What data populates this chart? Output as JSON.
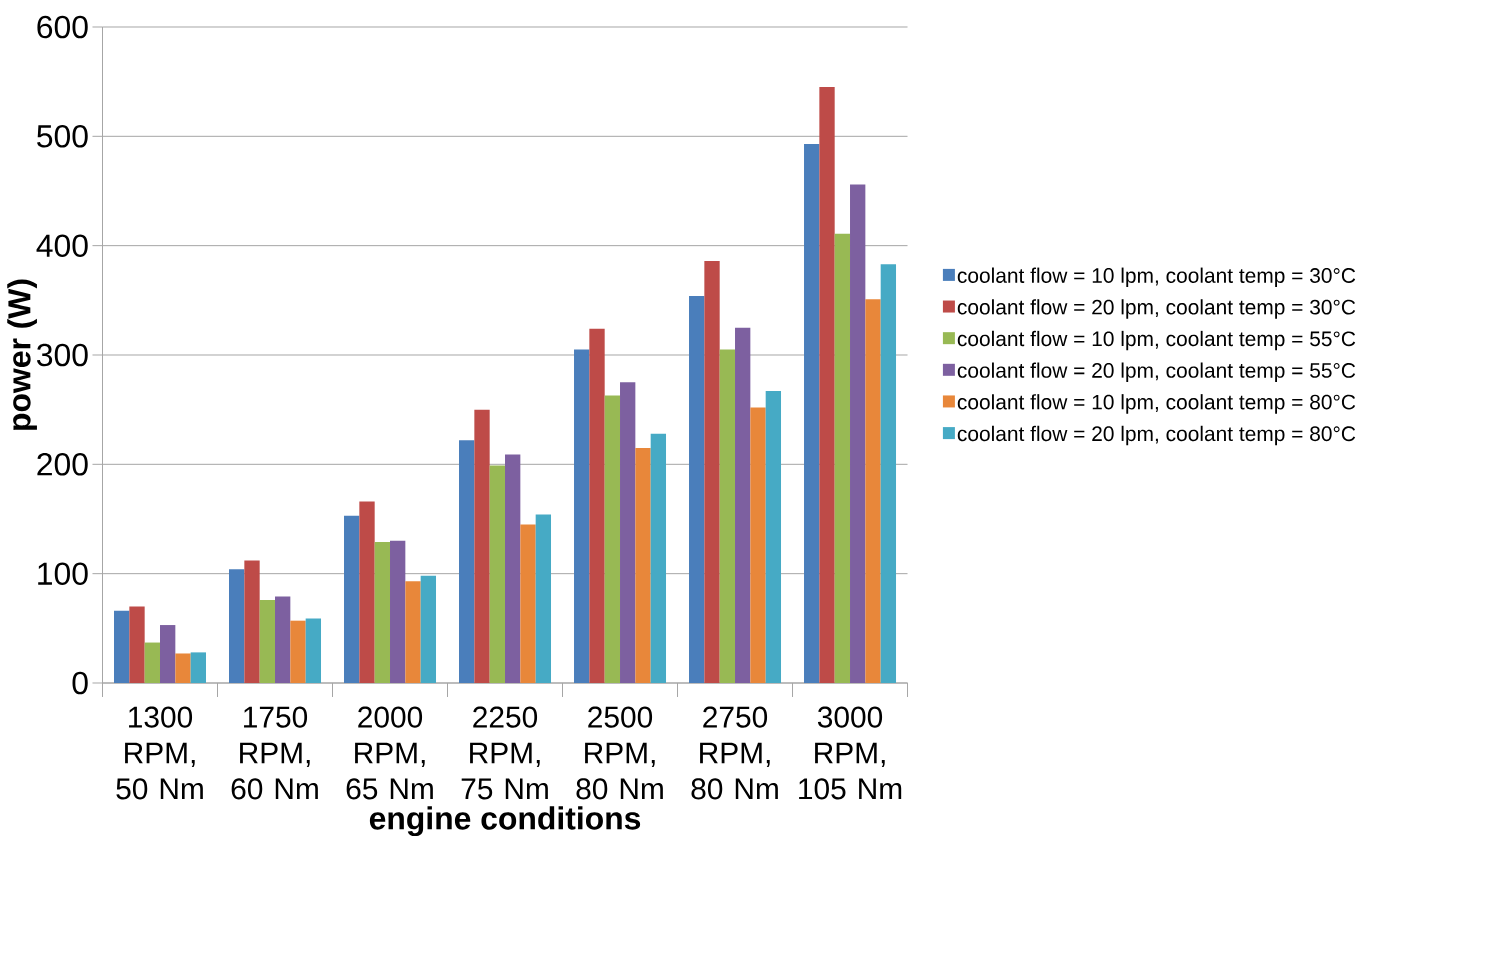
{
  "chart_data": {
    "type": "bar",
    "xlabel": "engine conditions",
    "ylabel": "power (W)",
    "categories": [
      "1300 RPM, 50 Nm",
      "1750 RPM, 60 Nm",
      "2000 RPM, 65 Nm",
      "2250 RPM, 75 Nm",
      "2500 RPM, 80 Nm",
      "2750 RPM, 80 Nm",
      "3000 RPM, 105 Nm"
    ],
    "series": [
      {
        "name": "coolant flow = 10 lpm, coolant temp = 30°C",
        "color": "#4a7ebb",
        "values": [
          66,
          104,
          153,
          222,
          305,
          354,
          493
        ]
      },
      {
        "name": "coolant flow = 20 lpm, coolant temp = 30°C",
        "color": "#be4b48",
        "values": [
          70,
          112,
          166,
          250,
          324,
          386,
          545
        ]
      },
      {
        "name": "coolant flow = 10 lpm, coolant temp = 55°C",
        "color": "#98b954",
        "values": [
          37,
          76,
          129,
          199,
          263,
          305,
          411
        ]
      },
      {
        "name": "coolant flow = 20 lpm, coolant temp = 55°C",
        "color": "#7d60a0",
        "values": [
          53,
          79,
          130,
          209,
          275,
          325,
          456
        ]
      },
      {
        "name": "coolant flow = 10 lpm, coolant temp = 80°C",
        "color": "#e8873a",
        "values": [
          27,
          57,
          93,
          145,
          215,
          252,
          351
        ]
      },
      {
        "name": "coolant flow = 20 lpm, coolant temp = 80°C",
        "color": "#46aac5",
        "values": [
          28,
          59,
          98,
          154,
          228,
          267,
          383
        ]
      }
    ],
    "ylim": [
      0,
      600
    ],
    "yticks": [
      0,
      100,
      200,
      300,
      400,
      500,
      600
    ],
    "grid": "y",
    "legend": "right"
  }
}
